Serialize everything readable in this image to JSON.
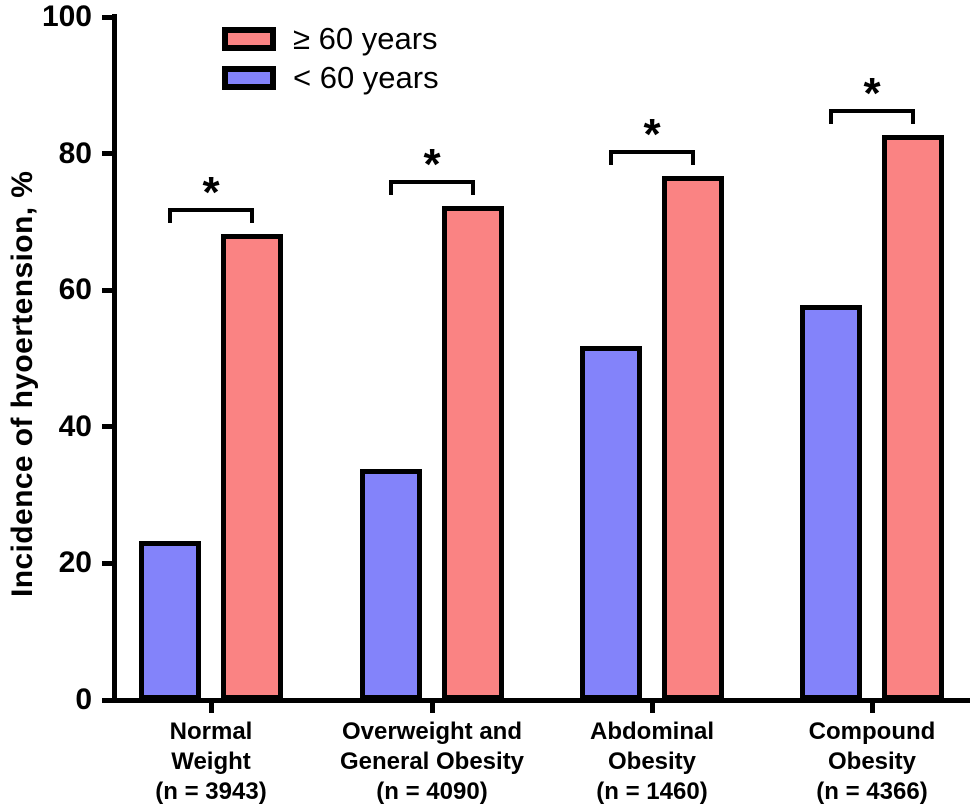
{
  "chart_data": {
    "type": "bar",
    "title": "",
    "ylabel": "Incidence of hyoertension, %",
    "xlabel": "",
    "ylim": [
      0,
      100
    ],
    "yticks": [
      0,
      20,
      40,
      60,
      80,
      100
    ],
    "grid": false,
    "legend_position": "top-inside-left",
    "categories": [
      "Normal Weight (n = 3943)",
      "Overweight and General Obesity (n = 4090)",
      "Abdominal Obesity (n = 1460)",
      "Compound Obesity (n = 4366)"
    ],
    "category_lines": [
      [
        "Normal",
        "Weight",
        "(n = 3943)"
      ],
      [
        "Overweight and",
        "General Obesity",
        "(n = 4090)"
      ],
      [
        "Abdominal",
        "Obesity",
        "(n = 1460)"
      ],
      [
        "Compound",
        "Obesity",
        "(n = 4366)"
      ]
    ],
    "series": [
      {
        "name": "≥ 60 years",
        "color": "#FA8383",
        "values": [
          68,
          72,
          76.5,
          82.5
        ]
      },
      {
        "name": "< 60 years",
        "color": "#8383FA",
        "values": [
          23,
          33.5,
          51.5,
          57.5
        ]
      }
    ],
    "significance": [
      "*",
      "*",
      "*",
      "*"
    ],
    "colors": {
      "axis": "#000000",
      "bar_border": "#000000",
      "background": "#FFFFFF"
    }
  }
}
